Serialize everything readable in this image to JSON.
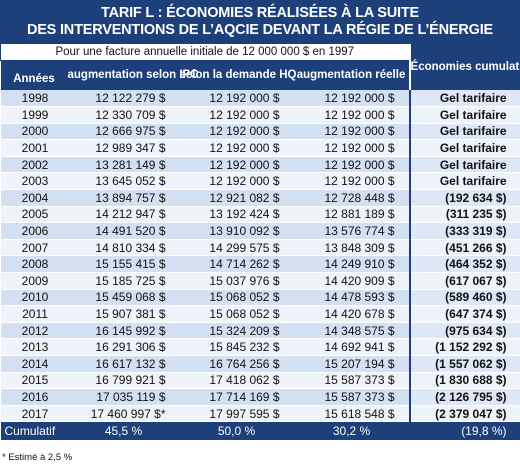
{
  "title": {
    "line1": "TARIF L : ÉCONOMIES RÉALISÉES À LA SUITE",
    "line2": "DES INTERVENTIONS DE L’AQCIE DEVANT LA RÉGIE DE L’ÉNERGIE"
  },
  "subtitle": "Pour une facture annuelle initiale de 12 000 000 $ en 1997",
  "headers": {
    "years": "Années",
    "ipc": "augmentation selon IPC",
    "hq": "selon la demande HQ",
    "reelle": "augmentation réelle",
    "economies": "Économies cumulatives"
  },
  "rows": [
    {
      "year": "1998",
      "ipc": "12 122 279 $",
      "hq": "12 192 000 $",
      "reelle": "12 192 000 $",
      "eco": "Gel tarifaire"
    },
    {
      "year": "1999",
      "ipc": "12 330 709 $",
      "hq": "12 192 000 $",
      "reelle": "12 192 000 $",
      "eco": "Gel tarifaire"
    },
    {
      "year": "2000",
      "ipc": "12 666 975 $",
      "hq": "12 192 000 $",
      "reelle": "12 192 000 $",
      "eco": "Gel tarifaire"
    },
    {
      "year": "2001",
      "ipc": "12 989 347 $",
      "hq": "12 192 000 $",
      "reelle": "12 192 000 $",
      "eco": "Gel tarifaire"
    },
    {
      "year": "2002",
      "ipc": "13 281 149 $",
      "hq": "12 192 000 $",
      "reelle": "12 192 000 $",
      "eco": "Gel tarifaire"
    },
    {
      "year": "2003",
      "ipc": "13 645 052 $",
      "hq": "12 192 000 $",
      "reelle": "12 192 000 $",
      "eco": "Gel tarifaire"
    },
    {
      "year": "2004",
      "ipc": "13 894 757 $",
      "hq": "12 921 082 $",
      "reelle": "12 728 448 $",
      "eco": "(192 634 $)"
    },
    {
      "year": "2005",
      "ipc": "14 212 947 $",
      "hq": "13 192 424 $",
      "reelle": "12 881 189 $",
      "eco": "(311 235 $)"
    },
    {
      "year": "2006",
      "ipc": "14 491 520 $",
      "hq": "13 910 092 $",
      "reelle": "13 576 774 $",
      "eco": "(333 319 $)"
    },
    {
      "year": "2007",
      "ipc": "14 810 334 $",
      "hq": "14 299 575 $",
      "reelle": "13 848 309 $",
      "eco": "(451 266 $)"
    },
    {
      "year": "2008",
      "ipc": "15 155 415 $",
      "hq": "14 714 262 $",
      "reelle": "14 249 910 $",
      "eco": "(464 352 $)"
    },
    {
      "year": "2009",
      "ipc": "15 185 725 $",
      "hq": "15 037 976 $",
      "reelle": "14 420 909 $",
      "eco": "(617 067 $)"
    },
    {
      "year": "2010",
      "ipc": "15 459 068 $",
      "hq": "15 068 052 $",
      "reelle": "14 478 593 $",
      "eco": "(589 460 $)"
    },
    {
      "year": "2011",
      "ipc": "15 907 381 $",
      "hq": "15 068 052 $",
      "reelle": "14 420 678 $",
      "eco": "(647 374 $)"
    },
    {
      "year": "2012",
      "ipc": "16 145 992 $",
      "hq": "15 324 209 $",
      "reelle": "14 348 575 $",
      "eco": "(975 634 $)"
    },
    {
      "year": "2013",
      "ipc": "16 291 306 $",
      "hq": "15 845 232 $",
      "reelle": "14 692 941 $",
      "eco": "(1 152 292 $)"
    },
    {
      "year": "2014",
      "ipc": "16 617 132 $",
      "hq": "16 764 256 $",
      "reelle": "15 207 194 $",
      "eco": "(1 557 062 $)"
    },
    {
      "year": "2015",
      "ipc": "16 799 921 $",
      "hq": "17 418 062 $",
      "reelle": "15 587 373 $",
      "eco": "(1 830 688 $)"
    },
    {
      "year": "2016",
      "ipc": "17 035 119 $",
      "hq": "17 714 169 $",
      "reelle": "15 587 373 $",
      "eco": "(2 126 795 $)"
    },
    {
      "year": "2017",
      "ipc": "17 460 997 $*",
      "hq": "17 997 595 $",
      "reelle": "15 618 548 $",
      "eco": "(2 379 047 $)"
    }
  ],
  "cumulatif": {
    "label": "Cumulatif",
    "ipc": "45,5 %",
    "hq": "50,0 %",
    "reelle": "30,2 %",
    "eco": "(19,8 %)"
  },
  "footnote": "* Estimé à 2,5 %",
  "colors": {
    "header_blue": "#1d3f7a",
    "row_light": "#eef3fa",
    "row_dark": "#d3e0f2"
  }
}
